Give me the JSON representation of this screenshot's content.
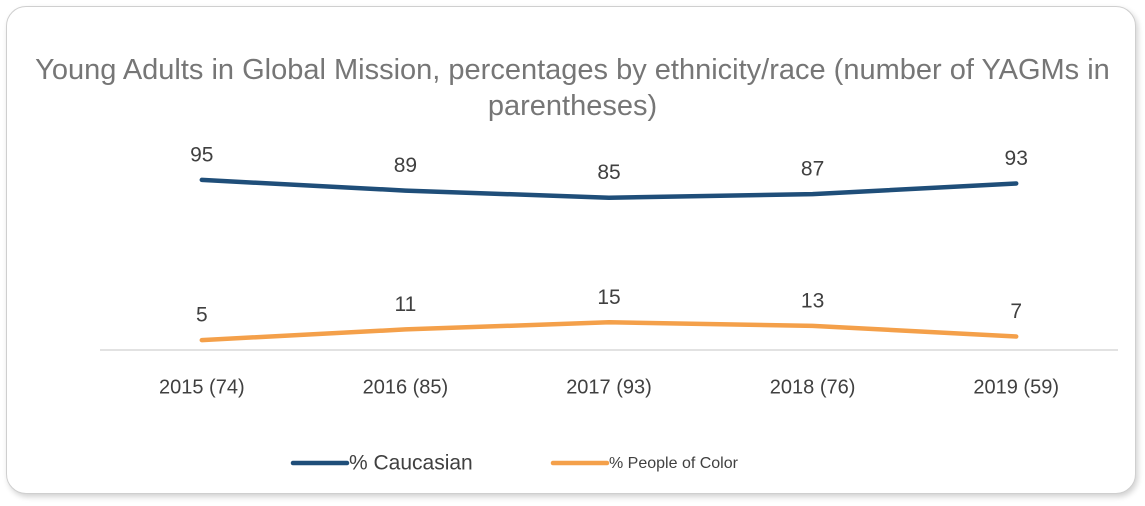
{
  "chart_data": {
    "type": "line",
    "title": "Young Adults in Global Mission, percentages by ethnicity/race (number of YAGMs in parentheses)",
    "categories": [
      "2015 (74)",
      "2016 (85)",
      "2017 (93)",
      "2018 (76)",
      "2019 (59)"
    ],
    "series": [
      {
        "name": "% Caucasian",
        "color": "#1f4e79",
        "values": [
          95,
          89,
          85,
          87,
          93
        ]
      },
      {
        "name": "% People of Color",
        "color": "#f4a04a",
        "values": [
          5,
          11,
          15,
          13,
          7
        ]
      }
    ],
    "ylim": [
      0,
      100
    ],
    "legend": "bottom"
  }
}
